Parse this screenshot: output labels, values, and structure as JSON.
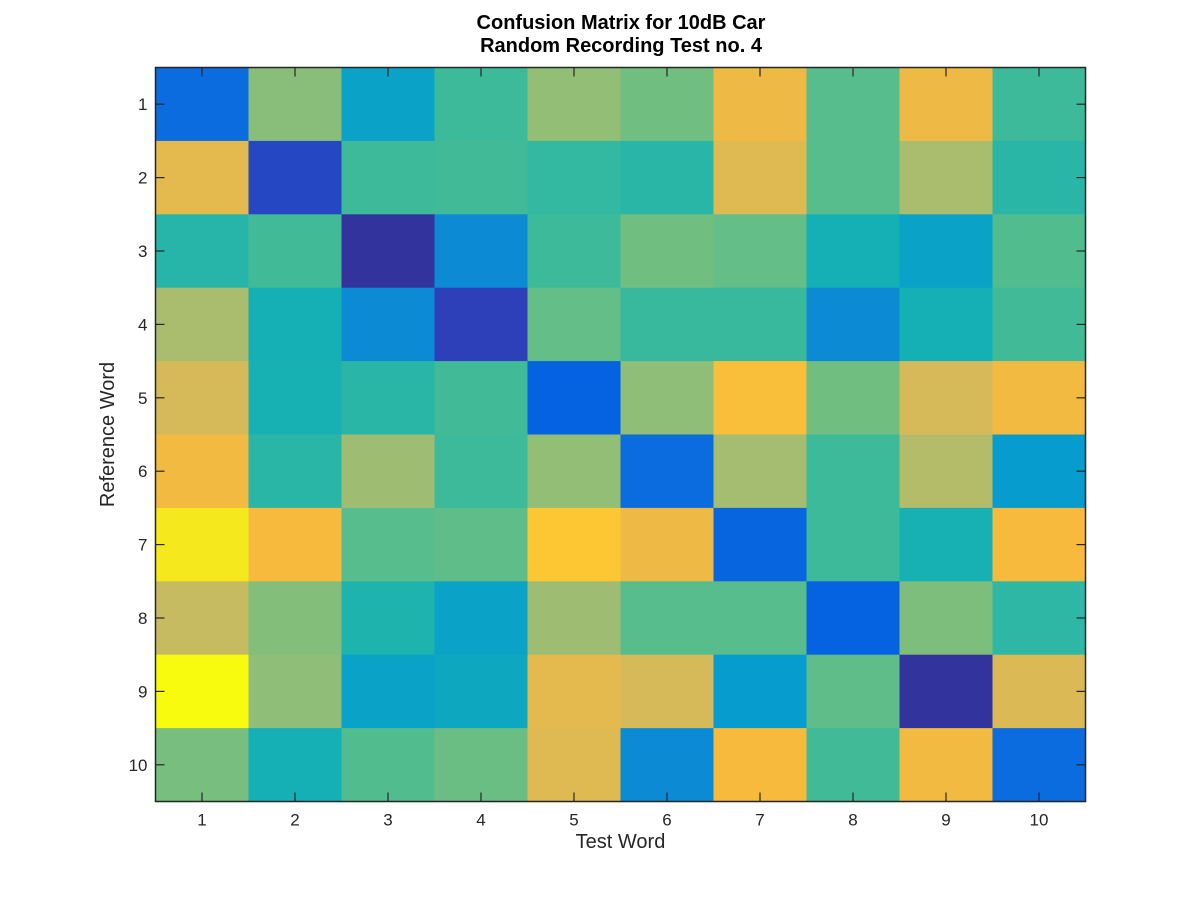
{
  "chart_data": {
    "type": "heatmap",
    "title": [
      "Confusion Matrix for 10dB Car",
      "Random Recording Test no. 4"
    ],
    "xlabel": "Test Word",
    "ylabel": "Reference Word",
    "x_ticks": [
      "1",
      "2",
      "3",
      "4",
      "5",
      "6",
      "7",
      "8",
      "9",
      "10"
    ],
    "y_ticks": [
      "1",
      "2",
      "3",
      "4",
      "5",
      "6",
      "7",
      "8",
      "9",
      "10"
    ],
    "colormap": "parula",
    "color_range": [
      0,
      1
    ],
    "rows": [
      [
        0.28,
        0.68,
        0.4,
        0.55,
        0.7,
        0.64,
        0.87,
        0.6,
        0.87,
        0.55
      ],
      [
        0.85,
        0.15,
        0.55,
        0.56,
        0.53,
        0.51,
        0.84,
        0.6,
        0.74,
        0.51
      ],
      [
        0.5,
        0.56,
        0.05,
        0.35,
        0.55,
        0.64,
        0.62,
        0.45,
        0.4,
        0.59
      ],
      [
        0.74,
        0.45,
        0.35,
        0.12,
        0.62,
        0.54,
        0.54,
        0.35,
        0.45,
        0.56
      ],
      [
        0.82,
        0.46,
        0.51,
        0.56,
        0.25,
        0.69,
        0.9,
        0.64,
        0.82,
        0.88
      ],
      [
        0.88,
        0.51,
        0.72,
        0.55,
        0.7,
        0.28,
        0.73,
        0.55,
        0.76,
        0.38
      ],
      [
        0.97,
        0.89,
        0.6,
        0.61,
        0.92,
        0.87,
        0.26,
        0.55,
        0.46,
        0.89
      ],
      [
        0.79,
        0.67,
        0.48,
        0.4,
        0.72,
        0.6,
        0.6,
        0.25,
        0.66,
        0.52
      ],
      [
        1.0,
        0.69,
        0.4,
        0.42,
        0.85,
        0.82,
        0.38,
        0.61,
        0.05,
        0.83
      ],
      [
        0.65,
        0.45,
        0.59,
        0.63,
        0.84,
        0.35,
        0.89,
        0.56,
        0.88,
        0.28
      ]
    ]
  }
}
